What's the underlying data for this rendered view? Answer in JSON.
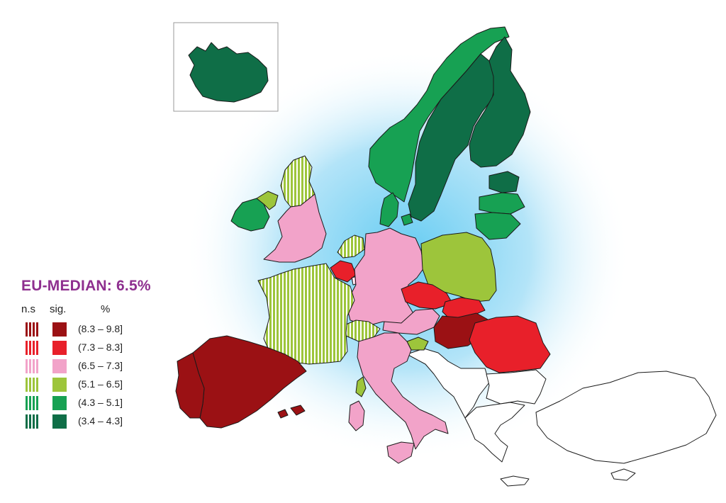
{
  "legend": {
    "title": "EU-MEDIAN: 6.5%",
    "col_ns": "n.s",
    "col_sig": "sig.",
    "col_pct": "%",
    "classes": [
      {
        "range": "(8.3 – 9.8]",
        "color": "#9b1114"
      },
      {
        "range": "(7.3 – 8.3]",
        "color": "#e8202a"
      },
      {
        "range": "(6.5 – 7.3]",
        "color": "#f2a3c9"
      },
      {
        "range": "(5.1 – 6.5]",
        "color": "#9dc53b"
      },
      {
        "range": "(4.3 – 5.1]",
        "color": "#17a153"
      },
      {
        "range": "(3.4 – 4.3]",
        "color": "#0f6e47"
      }
    ]
  },
  "countries": [
    {
      "name": "iceland",
      "class": 5,
      "significant": true
    },
    {
      "name": "norway",
      "class": 4,
      "significant": true
    },
    {
      "name": "sweden",
      "class": 5,
      "significant": true
    },
    {
      "name": "finland",
      "class": 5,
      "significant": true
    },
    {
      "name": "estonia",
      "class": 5,
      "significant": true
    },
    {
      "name": "latvia",
      "class": 4,
      "significant": true
    },
    {
      "name": "lithuania",
      "class": 4,
      "significant": true
    },
    {
      "name": "denmark",
      "class": 4,
      "significant": true
    },
    {
      "name": "ireland",
      "class": 4,
      "significant": true
    },
    {
      "name": "northern-ireland",
      "class": 3,
      "significant": true
    },
    {
      "name": "scotland",
      "class": 3,
      "significant": false
    },
    {
      "name": "england",
      "class": 2,
      "significant": true
    },
    {
      "name": "netherlands",
      "class": 3,
      "significant": false
    },
    {
      "name": "belgium",
      "class": 1,
      "significant": true
    },
    {
      "name": "luxembourg",
      "class": 2,
      "significant": false
    },
    {
      "name": "germany",
      "class": 2,
      "significant": true
    },
    {
      "name": "poland",
      "class": 3,
      "significant": true
    },
    {
      "name": "czechia",
      "class": 1,
      "significant": true
    },
    {
      "name": "slovakia",
      "class": 1,
      "significant": true
    },
    {
      "name": "austria",
      "class": 2,
      "significant": true
    },
    {
      "name": "hungary",
      "class": 0,
      "significant": true
    },
    {
      "name": "romania",
      "class": 1,
      "significant": true
    },
    {
      "name": "slovenia",
      "class": 3,
      "significant": true
    },
    {
      "name": "switzerland",
      "class": 3,
      "significant": false
    },
    {
      "name": "france",
      "class": 3,
      "significant": false
    },
    {
      "name": "italy",
      "class": 2,
      "significant": true
    },
    {
      "name": "sicily",
      "class": 2,
      "significant": true
    },
    {
      "name": "sardinia",
      "class": 2,
      "significant": true
    },
    {
      "name": "corsica",
      "class": 3,
      "significant": true
    },
    {
      "name": "spain",
      "class": 0,
      "significant": true
    },
    {
      "name": "portugal",
      "class": 0,
      "significant": true
    },
    {
      "name": "balearic-islands",
      "class": 0,
      "significant": true
    }
  ]
}
